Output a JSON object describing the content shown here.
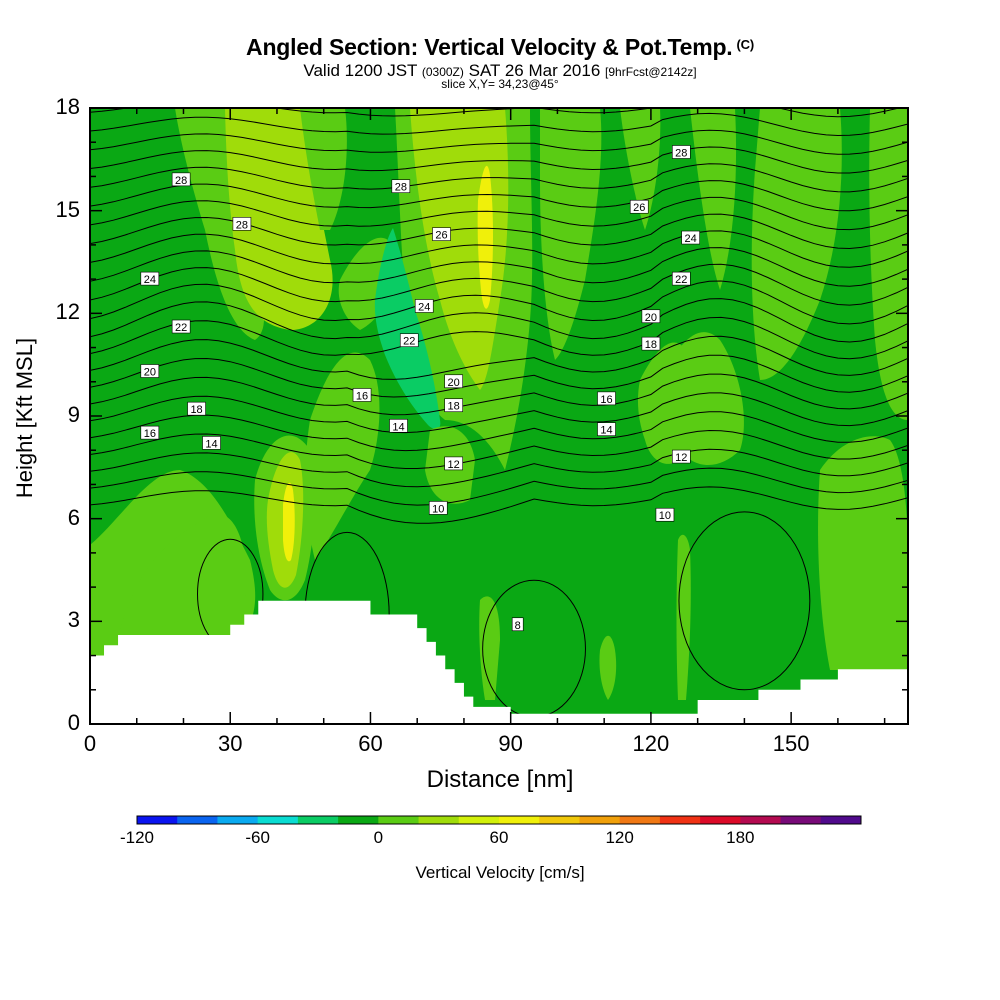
{
  "header": {
    "title": "Angled Section: Vertical Velocity & Pot.Temp.",
    "title_unit": "(C)",
    "valid_prefix": "Valid 1200 JST",
    "valid_utc": "(0300Z)",
    "valid_date": "SAT 26 Mar 2016",
    "forecast": "[9hrFcst@2142z]",
    "slice": "slice X,Y= 34,23@45°"
  },
  "chart_data": {
    "type": "heatmap",
    "xlabel": "Distance [nm]",
    "ylabel": "Height [Kft MSL]",
    "xlim": [
      0,
      175
    ],
    "ylim": [
      0,
      18
    ],
    "xticks": [
      "0",
      "30",
      "60",
      "90",
      "120",
      "150"
    ],
    "yticks": [
      "0",
      "3",
      "6",
      "9",
      "12",
      "15",
      "18"
    ],
    "background_color": "#0aa814",
    "terrain": {
      "x": [
        0,
        3,
        3,
        6,
        6,
        30,
        30,
        33,
        33,
        36,
        36,
        60,
        60,
        70,
        70,
        72,
        72,
        74,
        74,
        76,
        76,
        78,
        78,
        80,
        80,
        82,
        82,
        90,
        90,
        93,
        93,
        130,
        130,
        143,
        143,
        152,
        152,
        160,
        160,
        175
      ],
      "height": [
        2.0,
        2.0,
        2.3,
        2.3,
        2.6,
        2.6,
        2.9,
        2.9,
        3.2,
        3.2,
        3.6,
        3.6,
        3.2,
        3.2,
        2.8,
        2.8,
        2.4,
        2.4,
        2.0,
        2.0,
        1.6,
        1.6,
        1.2,
        1.2,
        0.8,
        0.8,
        0.5,
        0.5,
        0.3,
        0.3,
        0.3,
        0.3,
        0.7,
        0.7,
        1.0,
        1.0,
        1.3,
        1.3,
        1.6,
        1.6
      ]
    },
    "theta_contour_labels": [
      {
        "value": "28",
        "x": 19.5,
        "y": 15.9
      },
      {
        "value": "28",
        "x": 32.5,
        "y": 14.6
      },
      {
        "value": "24",
        "x": 12.8,
        "y": 13.0
      },
      {
        "value": "22",
        "x": 19.5,
        "y": 11.6
      },
      {
        "value": "20",
        "x": 12.8,
        "y": 10.3
      },
      {
        "value": "18",
        "x": 22.8,
        "y": 9.2
      },
      {
        "value": "16",
        "x": 12.8,
        "y": 8.5
      },
      {
        "value": "14",
        "x": 26,
        "y": 8.2
      },
      {
        "value": "28",
        "x": 66.5,
        "y": 15.7
      },
      {
        "value": "26",
        "x": 75.2,
        "y": 14.3
      },
      {
        "value": "24",
        "x": 71.5,
        "y": 12.2
      },
      {
        "value": "22",
        "x": 68.3,
        "y": 11.2
      },
      {
        "value": "20",
        "x": 77.8,
        "y": 10.0
      },
      {
        "value": "18",
        "x": 77.8,
        "y": 9.3
      },
      {
        "value": "16",
        "x": 58.2,
        "y": 9.6
      },
      {
        "value": "14",
        "x": 66,
        "y": 8.7
      },
      {
        "value": "12",
        "x": 77.8,
        "y": 7.6
      },
      {
        "value": "10",
        "x": 74.5,
        "y": 6.3
      },
      {
        "value": "8",
        "x": 91.5,
        "y": 2.9
      },
      {
        "value": "28",
        "x": 126.5,
        "y": 16.7
      },
      {
        "value": "26",
        "x": 117.5,
        "y": 15.1
      },
      {
        "value": "24",
        "x": 128.5,
        "y": 14.2
      },
      {
        "value": "22",
        "x": 126.5,
        "y": 13.0
      },
      {
        "value": "20",
        "x": 120,
        "y": 11.9
      },
      {
        "value": "18",
        "x": 120,
        "y": 11.1
      },
      {
        "value": "16",
        "x": 110.5,
        "y": 9.5
      },
      {
        "value": "14",
        "x": 110.5,
        "y": 8.6
      },
      {
        "value": "12",
        "x": 126.5,
        "y": 7.8
      },
      {
        "value": "10",
        "x": 123,
        "y": 6.1
      }
    ]
  },
  "colorbar": {
    "title": "Vertical Velocity [cm/s]",
    "labels": [
      "-120",
      "-60",
      "0",
      "60",
      "120",
      "180"
    ],
    "colors": [
      "#0a14f0",
      "#0a64f0",
      "#0aaaf0",
      "#0adcd2",
      "#0acc64",
      "#0aa814",
      "#5acc14",
      "#a0dc0a",
      "#d2f00a",
      "#f0f00a",
      "#f0c80a",
      "#f0a00a",
      "#f07814",
      "#f03214",
      "#dc0a28",
      "#b40a50",
      "#780a78",
      "#500a8c"
    ]
  }
}
